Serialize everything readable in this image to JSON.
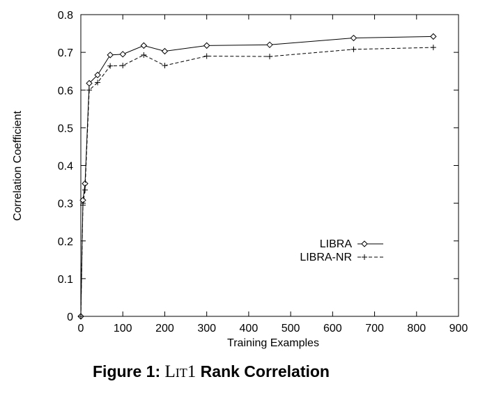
{
  "caption": {
    "label": "Figure 1:",
    "dataset": "Lit1",
    "title": "Rank Correlation"
  },
  "chart_data": {
    "type": "line",
    "title": "",
    "xlabel": "Training Examples",
    "ylabel": "Correlation Coefficient",
    "xlim": [
      0,
      900
    ],
    "ylim": [
      0,
      0.8
    ],
    "xticks": [
      0,
      100,
      200,
      300,
      400,
      500,
      600,
      700,
      800,
      900
    ],
    "yticks": [
      0,
      0.1,
      0.2,
      0.3,
      0.4,
      0.5,
      0.6,
      0.7,
      0.8
    ],
    "xtick_labels": [
      "0",
      "100",
      "200",
      "300",
      "400",
      "500",
      "600",
      "700",
      "800",
      "900"
    ],
    "ytick_labels": [
      "0",
      "0.1",
      "0.2",
      "0.3",
      "0.4",
      "0.5",
      "0.6",
      "0.7",
      "0.8"
    ],
    "grid": false,
    "legend_position": "right, below middle",
    "series": [
      {
        "name": "LIBRA",
        "line_style": "solid",
        "marker": "diamond",
        "x": [
          0,
          5,
          10,
          20,
          40,
          70,
          100,
          150,
          200,
          300,
          450,
          650,
          840
        ],
        "y": [
          0,
          0.308,
          0.352,
          0.618,
          0.64,
          0.693,
          0.695,
          0.718,
          0.703,
          0.718,
          0.72,
          0.738,
          0.742
        ]
      },
      {
        "name": "LIBRA-NR",
        "line_style": "dashed",
        "marker": "plus",
        "x": [
          0,
          5,
          10,
          20,
          40,
          70,
          100,
          150,
          200,
          300,
          450,
          650,
          840
        ],
        "y": [
          0,
          0.295,
          0.335,
          0.6,
          0.62,
          0.664,
          0.665,
          0.693,
          0.665,
          0.69,
          0.689,
          0.708,
          0.713
        ]
      }
    ]
  }
}
